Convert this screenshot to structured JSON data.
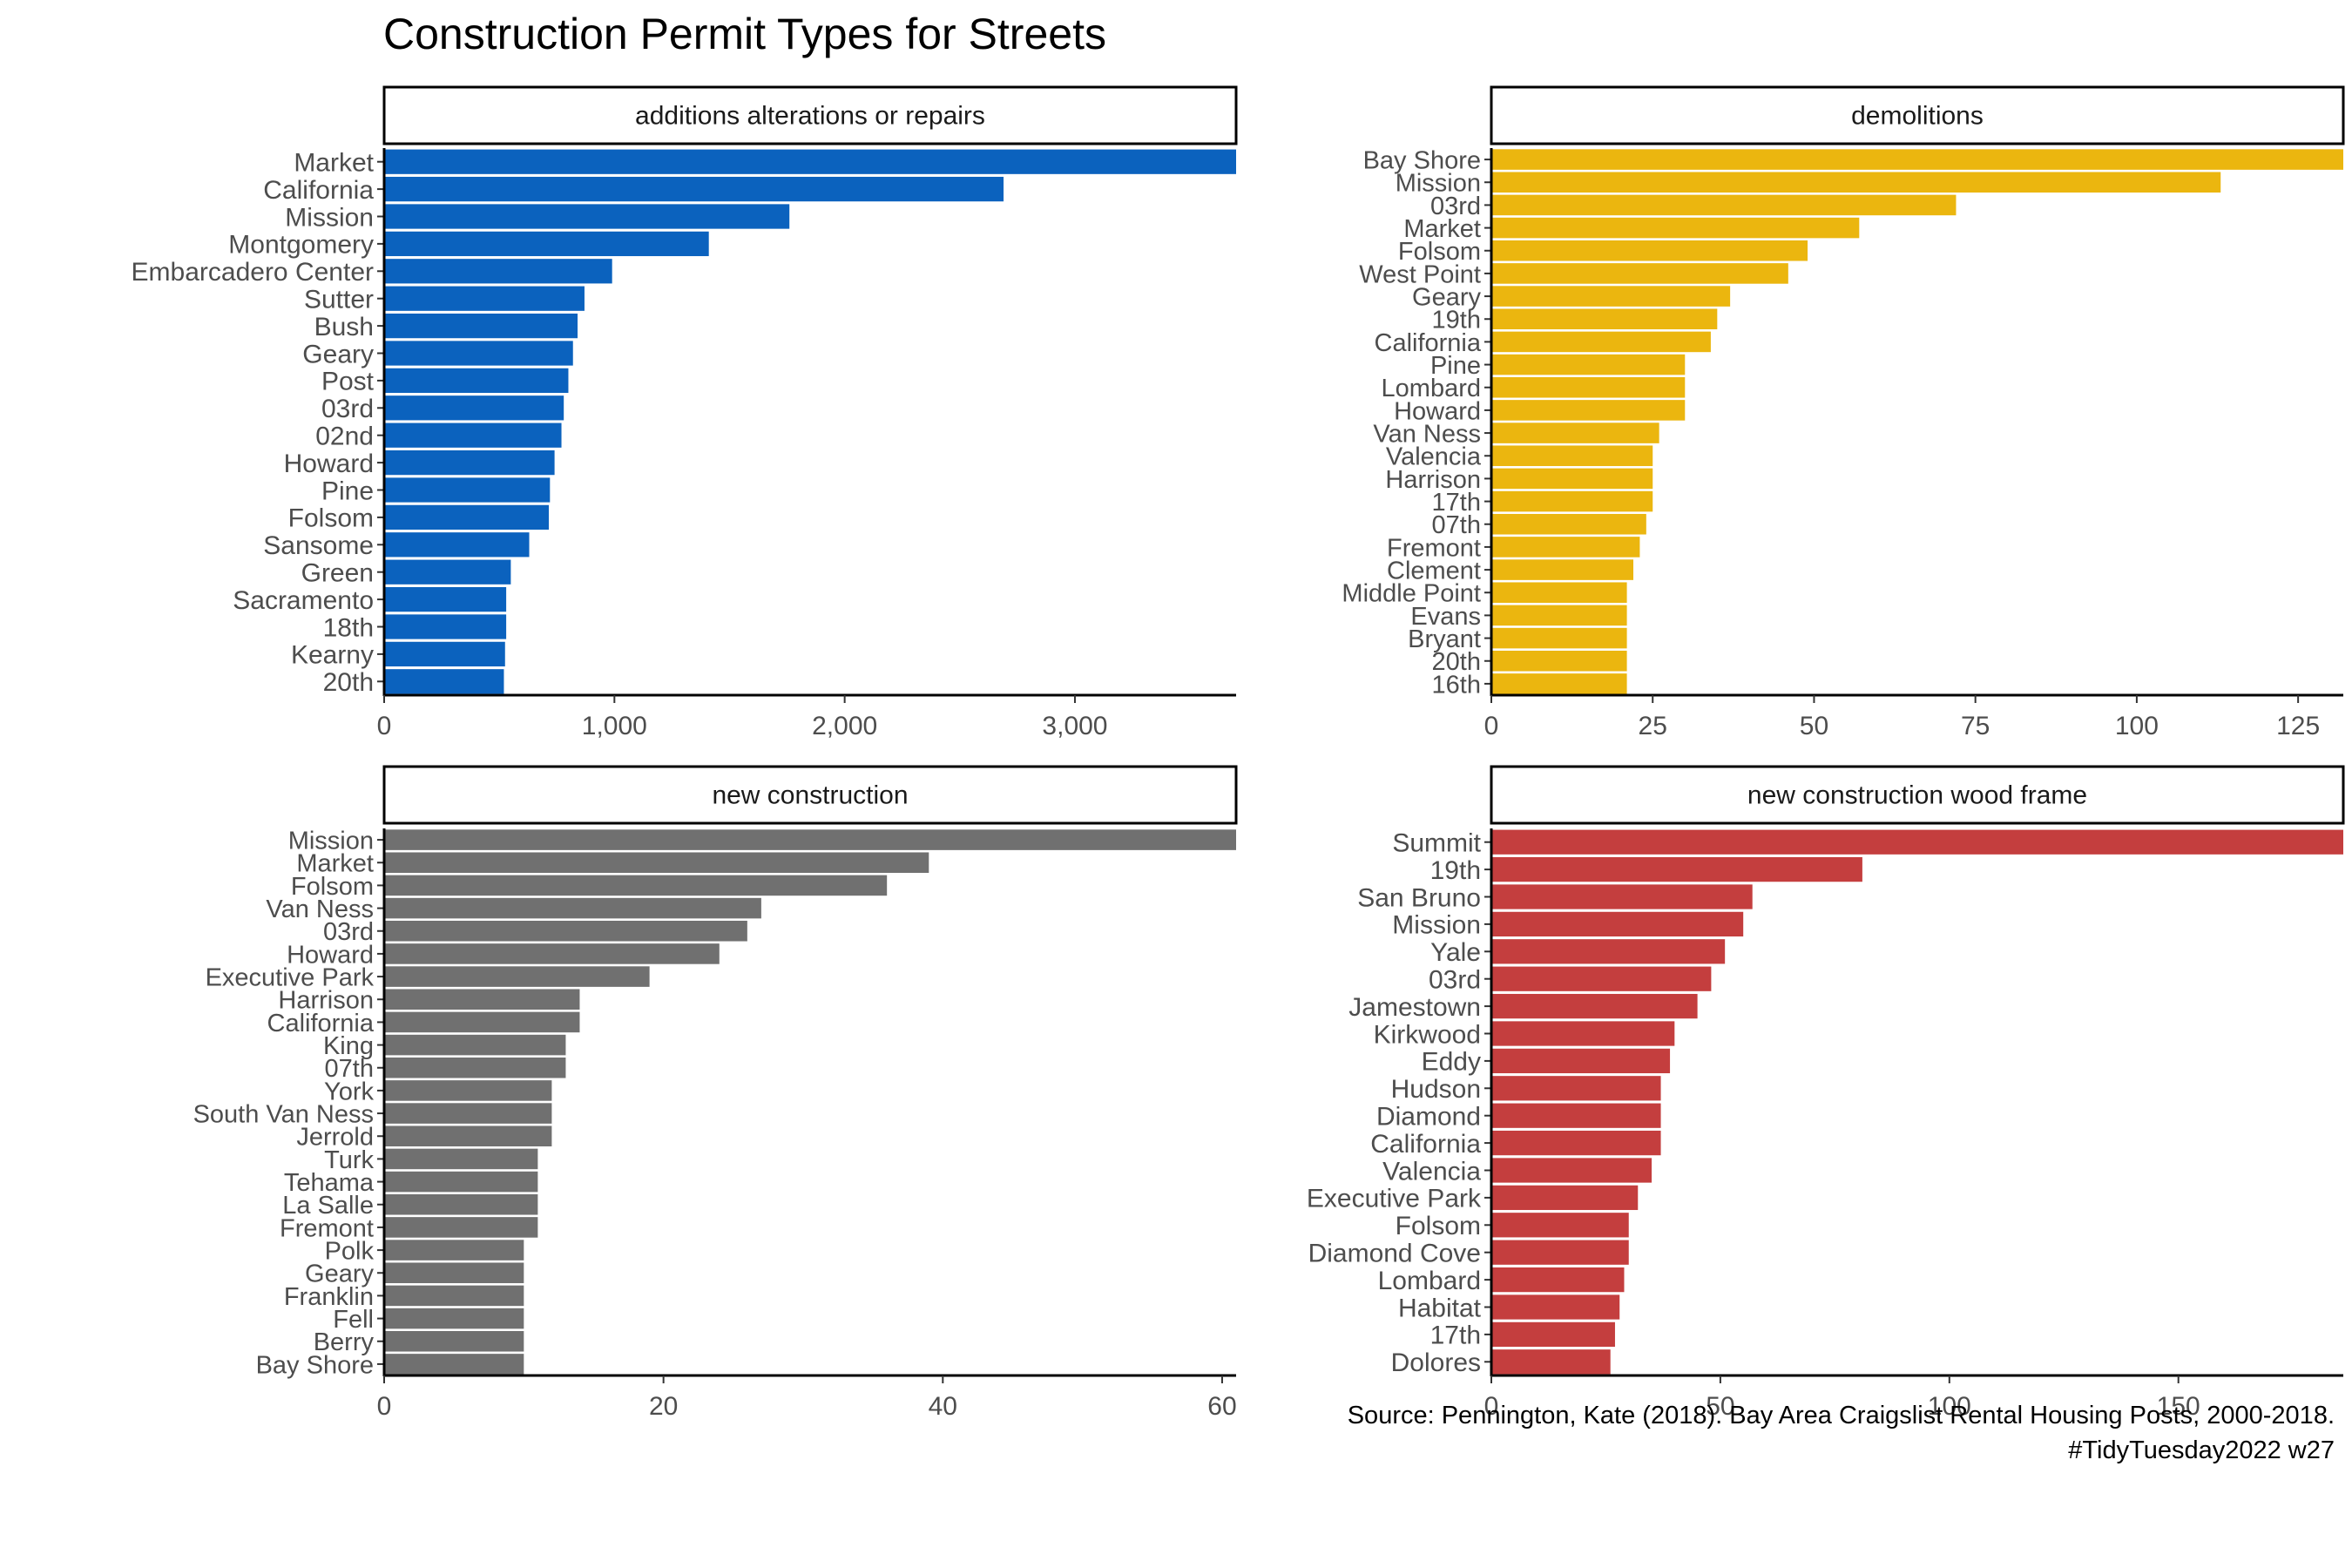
{
  "title": "Construction Permit Types for Streets",
  "caption": {
    "source": "Source: Pennington, Kate (2018). Bay Area Craigslist Rental Housing Posts, 2000-2018.",
    "tag": "#TidyTuesday2022 w27"
  },
  "chart_data": [
    {
      "type": "bar",
      "orientation": "horizontal",
      "facet_label": "additions alterations or repairs",
      "color": "#0B62BE",
      "xlim": [
        0,
        3700
      ],
      "ticks": [
        0,
        1000,
        2000,
        3000
      ],
      "tick_labels": [
        "0",
        "1,000",
        "2,000",
        "3,000"
      ],
      "categories": [
        "Market",
        "California",
        "Mission",
        "Montgomery",
        "Embarcadero Center",
        "Sutter",
        "Bush",
        "Geary",
        "Post",
        "03rd",
        "02nd",
        "Howard",
        "Pine",
        "Folsom",
        "Sansome",
        "Green",
        "Sacramento",
        "18th",
        "Kearny",
        "20th"
      ],
      "values": [
        3700,
        2690,
        1760,
        1410,
        990,
        870,
        840,
        820,
        800,
        780,
        770,
        740,
        720,
        715,
        630,
        550,
        530,
        530,
        525,
        520
      ]
    },
    {
      "type": "bar",
      "orientation": "horizontal",
      "facet_label": "demolitions",
      "color": "#EBB60F",
      "xlim": [
        0,
        132
      ],
      "ticks": [
        0,
        25,
        50,
        75,
        100,
        125
      ],
      "tick_labels": [
        "0",
        "25",
        "50",
        "75",
        "100",
        "125"
      ],
      "categories": [
        "Bay Shore",
        "Mission",
        "03rd",
        "Market",
        "Folsom",
        "West Point",
        "Geary",
        "19th",
        "California",
        "Pine",
        "Lombard",
        "Howard",
        "Van Ness",
        "Valencia",
        "Harrison",
        "17th",
        "07th",
        "Fremont",
        "Clement",
        "Middle Point",
        "Evans",
        "Bryant",
        "20th",
        "16th"
      ],
      "values": [
        132,
        113,
        72,
        57,
        49,
        46,
        37,
        35,
        34,
        30,
        30,
        30,
        26,
        25,
        25,
        25,
        24,
        23,
        22,
        21,
        21,
        21,
        21,
        21
      ]
    },
    {
      "type": "bar",
      "orientation": "horizontal",
      "facet_label": "new construction",
      "color": "#707070",
      "xlim": [
        0,
        61
      ],
      "ticks": [
        0,
        20,
        40,
        60
      ],
      "tick_labels": [
        "0",
        "20",
        "40",
        "60"
      ],
      "categories": [
        "Mission",
        "Market",
        "Folsom",
        "Van Ness",
        "03rd",
        "Howard",
        "Executive Park",
        "Harrison",
        "California",
        "King",
        "07th",
        "York",
        "South Van Ness",
        "Jerrold",
        "Turk",
        "Tehama",
        "La Salle",
        "Fremont",
        "Polk",
        "Geary",
        "Franklin",
        "Fell",
        "Berry",
        "Bay Shore"
      ],
      "values": [
        61,
        39,
        36,
        27,
        26,
        24,
        19,
        14,
        14,
        13,
        13,
        12,
        12,
        12,
        11,
        11,
        11,
        11,
        10,
        10,
        10,
        10,
        10,
        10
      ]
    },
    {
      "type": "bar",
      "orientation": "horizontal",
      "facet_label": "new construction wood frame",
      "color": "#C43E3E",
      "xlim": [
        0,
        186
      ],
      "ticks": [
        0,
        50,
        100,
        150
      ],
      "tick_labels": [
        "0",
        "50",
        "100",
        "150"
      ],
      "categories": [
        "Summit",
        "19th",
        "San Bruno",
        "Mission",
        "Yale",
        "03rd",
        "Jamestown",
        "Kirkwood",
        "Eddy",
        "Hudson",
        "Diamond",
        "California",
        "Valencia",
        "Executive Park",
        "Folsom",
        "Diamond Cove",
        "Lombard",
        "Habitat",
        "17th",
        "Dolores"
      ],
      "values": [
        186,
        81,
        57,
        55,
        51,
        48,
        45,
        40,
        39,
        37,
        37,
        37,
        35,
        32,
        30,
        30,
        29,
        28,
        27,
        26
      ]
    }
  ]
}
